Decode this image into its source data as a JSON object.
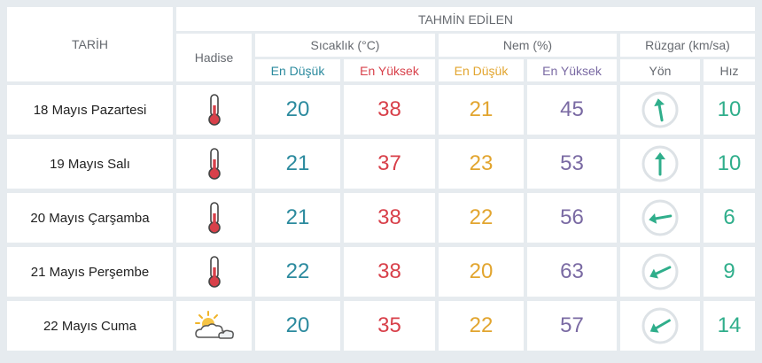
{
  "header": {
    "tarih": "TARİH",
    "tahmin": "TAHMİN EDİLEN",
    "hadise": "Hadise",
    "sicaklik": "Sıcaklık (°C)",
    "nem": "Nem (%)",
    "ruzgar": "Rüzgar (km/sa)",
    "en_dusuk": "En Düşük",
    "en_yuksek": "En Yüksek",
    "yon": "Yön",
    "hiz": "Hız"
  },
  "colors": {
    "teal": "#2b8a9e",
    "red": "#d8404a",
    "orange": "#e2a52f",
    "purple": "#7a6aa3",
    "green": "#2fae8b"
  },
  "rows": [
    {
      "date": "18 Mayıs Pazartesi",
      "hadise_icon": "thermometer-icon",
      "temp_min": "20",
      "temp_max": "38",
      "hum_min": "21",
      "hum_max": "45",
      "wind_dir_deg": 170,
      "wind_speed": "10"
    },
    {
      "date": "19 Mayıs Salı",
      "hadise_icon": "thermometer-icon",
      "temp_min": "21",
      "temp_max": "37",
      "hum_min": "23",
      "hum_max": "53",
      "wind_dir_deg": 180,
      "wind_speed": "10"
    },
    {
      "date": "20 Mayıs Çarşamba",
      "hadise_icon": "thermometer-icon",
      "temp_min": "21",
      "temp_max": "38",
      "hum_min": "22",
      "hum_max": "56",
      "wind_dir_deg": 80,
      "wind_speed": "6"
    },
    {
      "date": "21 Mayıs Perşembe",
      "hadise_icon": "thermometer-icon",
      "temp_min": "22",
      "temp_max": "38",
      "hum_min": "20",
      "hum_max": "63",
      "wind_dir_deg": 65,
      "wind_speed": "9"
    },
    {
      "date": "22 Mayıs Cuma",
      "hadise_icon": "partly-cloudy-icon",
      "temp_min": "20",
      "temp_max": "35",
      "hum_min": "22",
      "hum_max": "57",
      "wind_dir_deg": 60,
      "wind_speed": "14"
    }
  ]
}
